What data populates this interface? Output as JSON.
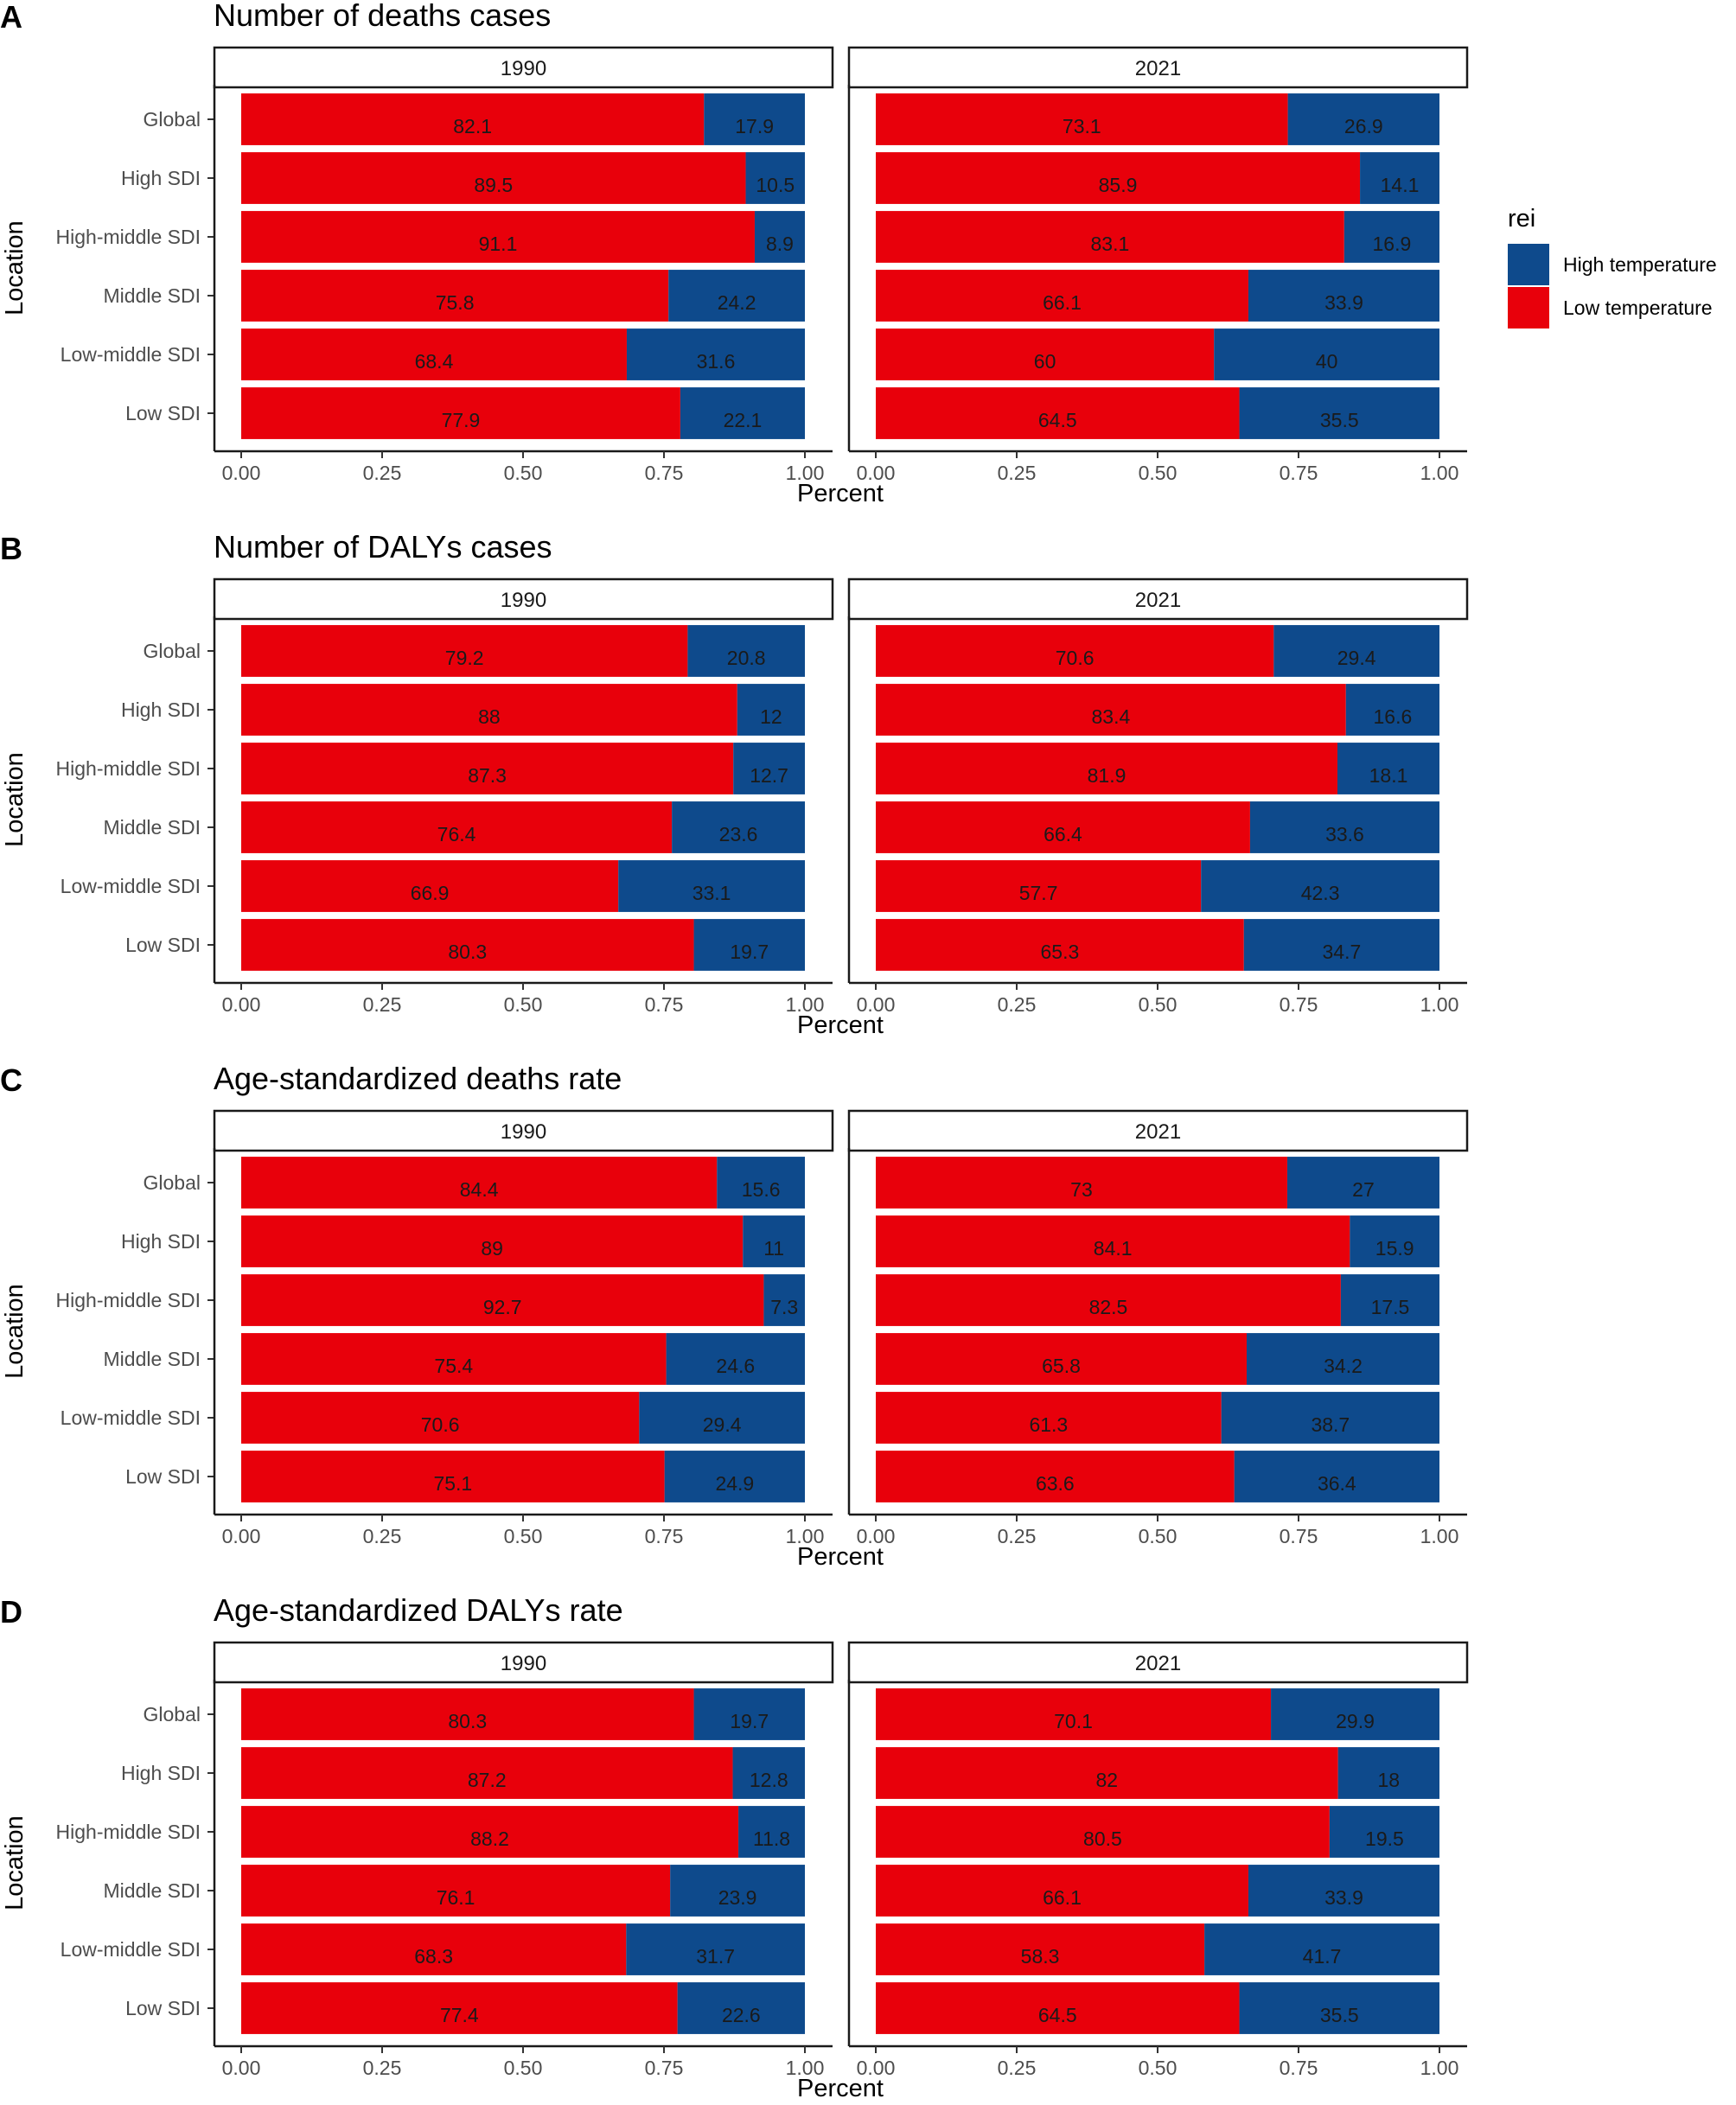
{
  "chart_data": [
    {
      "type": "bar",
      "orientation": "horizontal-stacked",
      "panel": "A",
      "title": "Number of deaths cases",
      "xlabel": "Percent",
      "ylabel": "Location",
      "xlim": [
        0,
        1
      ],
      "xticks": [
        "0.00",
        "0.25",
        "0.50",
        "0.75",
        "1.00"
      ],
      "categories": [
        "Global",
        "High SDI",
        "High-middle SDI",
        "Middle SDI",
        "Low-middle SDI",
        "Low SDI"
      ],
      "facets": [
        {
          "label": "1990",
          "series": [
            {
              "name": "Low temperature",
              "values": [
                82.1,
                89.5,
                91.1,
                75.8,
                68.4,
                77.9
              ]
            },
            {
              "name": "High temperature",
              "values": [
                17.9,
                10.5,
                8.9,
                24.2,
                31.6,
                22.1
              ]
            }
          ]
        },
        {
          "label": "2021",
          "series": [
            {
              "name": "Low temperature",
              "values": [
                73.1,
                85.9,
                83.1,
                66.1,
                60,
                64.5
              ]
            },
            {
              "name": "High temperature",
              "values": [
                26.9,
                14.1,
                16.9,
                33.9,
                40,
                35.5
              ]
            }
          ]
        }
      ]
    },
    {
      "type": "bar",
      "orientation": "horizontal-stacked",
      "panel": "B",
      "title": "Number of DALYs cases",
      "xlabel": "Percent",
      "ylabel": "Location",
      "xlim": [
        0,
        1
      ],
      "xticks": [
        "0.00",
        "0.25",
        "0.50",
        "0.75",
        "1.00"
      ],
      "categories": [
        "Global",
        "High SDI",
        "High-middle SDI",
        "Middle SDI",
        "Low-middle SDI",
        "Low SDI"
      ],
      "facets": [
        {
          "label": "1990",
          "series": [
            {
              "name": "Low temperature",
              "values": [
                79.2,
                88,
                87.3,
                76.4,
                66.9,
                80.3
              ]
            },
            {
              "name": "High temperature",
              "values": [
                20.8,
                12,
                12.7,
                23.6,
                33.1,
                19.7
              ]
            }
          ]
        },
        {
          "label": "2021",
          "series": [
            {
              "name": "Low temperature",
              "values": [
                70.6,
                83.4,
                81.9,
                66.4,
                57.7,
                65.3
              ]
            },
            {
              "name": "High temperature",
              "values": [
                29.4,
                16.6,
                18.1,
                33.6,
                42.3,
                34.7
              ]
            }
          ]
        }
      ]
    },
    {
      "type": "bar",
      "orientation": "horizontal-stacked",
      "panel": "C",
      "title": "Age-standardized deaths rate",
      "xlabel": "Percent",
      "ylabel": "Location",
      "xlim": [
        0,
        1
      ],
      "xticks": [
        "0.00",
        "0.25",
        "0.50",
        "0.75",
        "1.00"
      ],
      "categories": [
        "Global",
        "High SDI",
        "High-middle SDI",
        "Middle SDI",
        "Low-middle SDI",
        "Low SDI"
      ],
      "facets": [
        {
          "label": "1990",
          "series": [
            {
              "name": "Low temperature",
              "values": [
                84.4,
                89,
                92.7,
                75.4,
                70.6,
                75.1
              ]
            },
            {
              "name": "High temperature",
              "values": [
                15.6,
                11,
                7.3,
                24.6,
                29.4,
                24.9
              ]
            }
          ]
        },
        {
          "label": "2021",
          "series": [
            {
              "name": "Low temperature",
              "values": [
                73,
                84.1,
                82.5,
                65.8,
                61.3,
                63.6
              ]
            },
            {
              "name": "High temperature",
              "values": [
                27,
                15.9,
                17.5,
                34.2,
                38.7,
                36.4
              ]
            }
          ]
        }
      ]
    },
    {
      "type": "bar",
      "orientation": "horizontal-stacked",
      "panel": "D",
      "title": "Age-standardized DALYs rate",
      "xlabel": "Percent",
      "ylabel": "Location",
      "xlim": [
        0,
        1
      ],
      "xticks": [
        "0.00",
        "0.25",
        "0.50",
        "0.75",
        "1.00"
      ],
      "categories": [
        "Global",
        "High SDI",
        "High-middle SDI",
        "Middle SDI",
        "Low-middle SDI",
        "Low SDI"
      ],
      "facets": [
        {
          "label": "1990",
          "series": [
            {
              "name": "Low temperature",
              "values": [
                80.3,
                87.2,
                88.2,
                76.1,
                68.3,
                77.4
              ]
            },
            {
              "name": "High temperature",
              "values": [
                19.7,
                12.8,
                11.8,
                23.9,
                31.7,
                22.6
              ]
            }
          ]
        },
        {
          "label": "2021",
          "series": [
            {
              "name": "Low temperature",
              "values": [
                70.1,
                82,
                80.5,
                66.1,
                58.3,
                64.5
              ]
            },
            {
              "name": "High temperature",
              "values": [
                29.9,
                18,
                19.5,
                33.9,
                41.7,
                35.5
              ]
            }
          ]
        }
      ]
    }
  ],
  "legend": {
    "title": "rei",
    "placement": "right",
    "items": [
      {
        "name": "High temperature",
        "color": "#0e4a8c"
      },
      {
        "name": "Low temperature",
        "color": "#e8000b"
      }
    ]
  },
  "colors": {
    "High temperature": "#0e4a8c",
    "Low temperature": "#e8000b"
  }
}
